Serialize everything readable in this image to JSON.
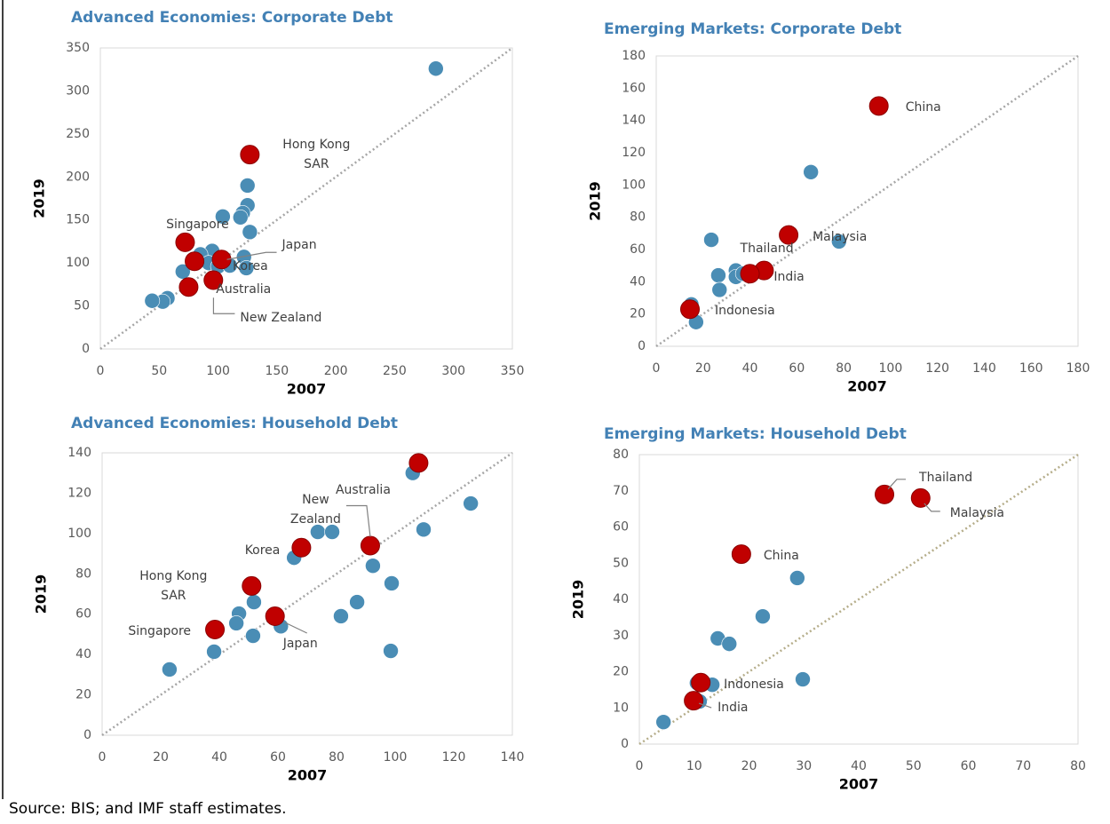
{
  "chart_data": [
    {
      "type": "scatter",
      "title": "Advanced Economies: Corporate Debt",
      "xlabel": "2007",
      "ylabel": "2019",
      "xlim": [
        0,
        350
      ],
      "ylim": [
        0,
        350
      ],
      "xticks": [
        0,
        50,
        100,
        150,
        200,
        250,
        300,
        350
      ],
      "yticks": [
        0,
        50,
        100,
        150,
        200,
        250,
        300,
        350
      ],
      "diagonal_color": "#a6a6a6",
      "series": [
        {
          "color": "#4a8db5",
          "x": [
            285,
            125,
            125,
            121,
            119,
            104,
            127,
            122,
            124,
            95,
            85,
            70,
            92,
            75,
            57,
            53,
            44,
            100,
            110
          ],
          "y": [
            326,
            190,
            167,
            158,
            153,
            154,
            136,
            107,
            94,
            114,
            110,
            90,
            100,
            70,
            59,
            55,
            56,
            96,
            97
          ]
        },
        {
          "color": "#c00000",
          "x": [
            127,
            72,
            103,
            80,
            96,
            75
          ],
          "y": [
            226,
            124,
            104,
            102,
            80,
            72
          ],
          "labels": [
            "Hong Kong SAR",
            "Singapore",
            "Japan",
            "Korea",
            "Australia",
            "New Zealand"
          ]
        }
      ]
    },
    {
      "type": "scatter",
      "title": "Emerging Markets: Corporate Debt",
      "xlabel": "2007",
      "ylabel": "2019",
      "xlim": [
        0,
        180
      ],
      "ylim": [
        0,
        180
      ],
      "xticks": [
        0,
        20,
        40,
        60,
        80,
        100,
        120,
        140,
        160,
        180
      ],
      "yticks": [
        0,
        20,
        40,
        60,
        80,
        100,
        120,
        140,
        160,
        180
      ],
      "diagonal_color": "#a6a6a6",
      "series": [
        {
          "color": "#4a8db5",
          "x": [
            66,
            23.5,
            78,
            26.5,
            34,
            34,
            37,
            27,
            15,
            17
          ],
          "y": [
            108,
            66,
            65,
            44,
            47,
            43,
            45,
            35,
            26,
            15
          ]
        },
        {
          "color": "#c00000",
          "x": [
            95,
            56.5,
            46,
            40,
            14.4
          ],
          "y": [
            149,
            69,
            47,
            45,
            23
          ],
          "labels": [
            "China",
            "Malaysia",
            "India",
            "Thailand",
            "Indonesia"
          ]
        }
      ]
    },
    {
      "type": "scatter",
      "title": "Advanced Economies: Household Debt",
      "xlabel": "2007",
      "ylabel": "2019",
      "xlim": [
        0,
        140
      ],
      "ylim": [
        0,
        140
      ],
      "xticks": [
        0,
        20,
        40,
        60,
        80,
        100,
        120,
        140
      ],
      "yticks": [
        0,
        20,
        40,
        60,
        80,
        100,
        120,
        140
      ],
      "diagonal_color": "#a6a6a6",
      "series": [
        {
          "color": "#4a8db5",
          "x": [
            106,
            125.8,
            109.7,
            73.6,
            78.5,
            65.5,
            92.4,
            98.8,
            87,
            81.5,
            51.8,
            46.7,
            45.8,
            61,
            51.5,
            38.2,
            98.5,
            23
          ],
          "y": [
            130,
            114.9,
            102,
            100.8,
            100.8,
            88,
            84,
            75.3,
            66,
            59,
            66,
            60.3,
            55.5,
            54,
            49.3,
            41.4,
            41.8,
            32.6
          ]
        },
        {
          "color": "#c00000",
          "x": [
            108,
            91.5,
            68,
            51,
            59,
            38.5
          ],
          "y": [
            135,
            94,
            93,
            74,
            59,
            52.4
          ],
          "labels": [
            "New Zealand",
            "Australia",
            "Korea",
            "Hong Kong SAR",
            "Japan",
            "Singapore"
          ]
        }
      ]
    },
    {
      "type": "scatter",
      "title": "Emerging Markets: Household Debt",
      "xlabel": "2007",
      "ylabel": "2019",
      "xlim": [
        0,
        80
      ],
      "ylim": [
        0,
        80
      ],
      "xticks": [
        0,
        10,
        20,
        30,
        40,
        50,
        60,
        70,
        80
      ],
      "yticks": [
        0,
        10,
        20,
        30,
        40,
        50,
        60,
        70,
        80
      ],
      "diagonal_color": "#b5ad8a",
      "series": [
        {
          "color": "#4a8db5",
          "x": [
            28.8,
            22.5,
            14.3,
            16.4,
            29.8,
            13.3,
            10.5,
            11,
            4.4
          ],
          "y": [
            45.9,
            35.3,
            29.2,
            27.7,
            17.9,
            16.4,
            16.9,
            11.8,
            6.1
          ]
        },
        {
          "color": "#c00000",
          "x": [
            44.7,
            51.3,
            18.6,
            11.2,
            9.9
          ],
          "y": [
            69,
            68,
            52.5,
            17,
            12
          ],
          "labels": [
            "Thailand",
            "Malaysia",
            "China",
            "Indonesia",
            "India"
          ]
        }
      ]
    }
  ],
  "source": "Source: BIS; and IMF staff estimates."
}
